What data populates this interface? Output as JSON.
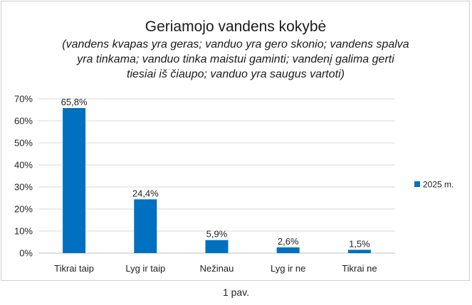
{
  "caption": "1 pav.",
  "chart_data": {
    "type": "bar",
    "title": "Geriamojo vandens kokybė",
    "subtitle_lines": [
      "(vandens kvapas yra geras; vanduo yra gero skonio; vandens spalva",
      "yra tinkama; vanduo tinka maistui gaminti; vandenį galima gerti",
      "tiesiai iš čiaupo; vanduo yra saugus vartoti)"
    ],
    "categories": [
      "Tikrai taip",
      "Lyg ir taip",
      "Nežinau",
      "Lyg ir ne",
      "Tikrai ne"
    ],
    "series": [
      {
        "name": "2025 m.",
        "values": [
          65.8,
          24.4,
          5.9,
          2.6,
          1.5
        ],
        "color": "#0070C0"
      }
    ],
    "data_labels": [
      "65,8%",
      "24,4%",
      "5,9%",
      "2,6%",
      "1,5%"
    ],
    "y_ticks": [
      "0%",
      "10%",
      "20%",
      "30%",
      "40%",
      "50%",
      "60%",
      "70%"
    ],
    "ylim": [
      0,
      70
    ],
    "grid": true,
    "legend_position": "right"
  }
}
